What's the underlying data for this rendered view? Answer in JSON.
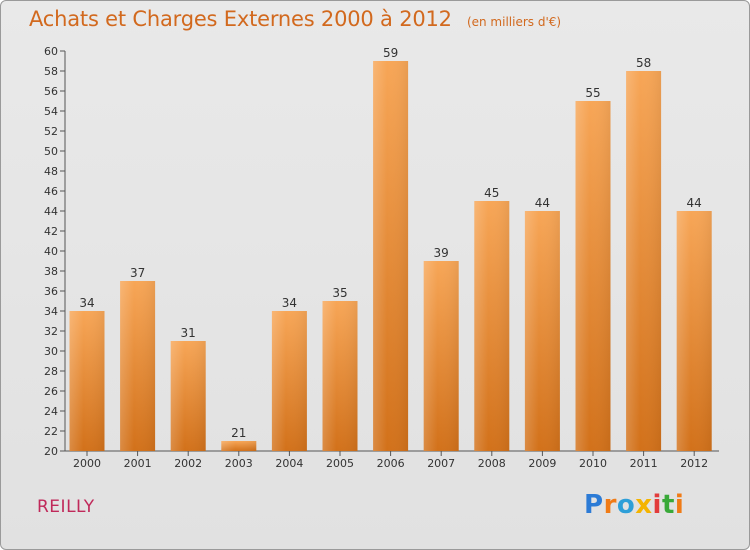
{
  "header": {
    "title": "Achats et Charges Externes 2000 à 2012",
    "unit": "(en milliers d'€)"
  },
  "footer": {
    "commune": "REILLY",
    "logo_text": "Proxiti"
  },
  "colors": {
    "bar_top": "#f7a657",
    "bar_bottom": "#d2711a",
    "title": "#d2691e",
    "commune": "#c0295a"
  },
  "chart_data": {
    "type": "bar",
    "title": "Achats et Charges Externes 2000 à 2012",
    "subtitle": "(en milliers d'€)",
    "categories": [
      "2000",
      "2001",
      "2002",
      "2003",
      "2004",
      "2005",
      "2006",
      "2007",
      "2008",
      "2009",
      "2010",
      "2011",
      "2012"
    ],
    "values": [
      34,
      37,
      31,
      21,
      34,
      35,
      59,
      39,
      45,
      44,
      55,
      58,
      44
    ],
    "ylim": [
      20,
      60
    ],
    "yticks": [
      20,
      22,
      24,
      26,
      28,
      30,
      32,
      34,
      36,
      38,
      40,
      42,
      44,
      46,
      48,
      50,
      52,
      54,
      56,
      58,
      60
    ],
    "grid": false,
    "legend": "none"
  }
}
